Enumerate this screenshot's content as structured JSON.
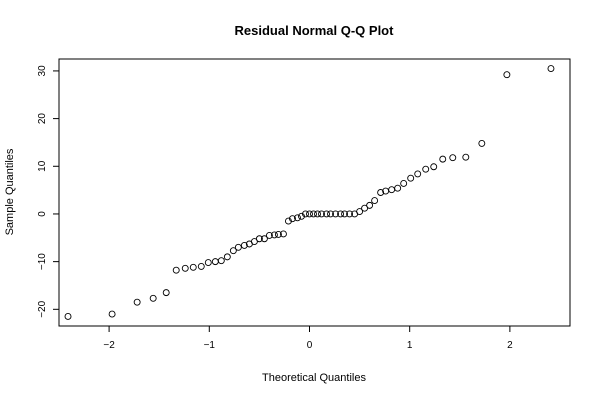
{
  "chart_data": {
    "type": "scatter",
    "title": "Residual Normal Q-Q Plot",
    "xlabel": "Theoretical Quantiles",
    "ylabel": "Sample Quantiles",
    "xlim": [
      -2.5,
      2.6
    ],
    "ylim": [
      -23.5,
      32.5
    ],
    "x_ticks": [
      -2,
      -1,
      0,
      1,
      2
    ],
    "x_tick_labels": [
      "−2",
      "−1",
      "0",
      "1",
      "2"
    ],
    "y_ticks": [
      -20,
      -10,
      0,
      10,
      20,
      30
    ],
    "y_tick_labels": [
      "−20",
      "−10",
      "0",
      "10",
      "20",
      "30"
    ],
    "grid": false,
    "legend": "none",
    "series": [
      {
        "x": [
          -2.41,
          -1.97,
          -1.72,
          -1.56,
          -1.43,
          -1.33,
          -1.24,
          -1.16,
          -1.08,
          -1.01,
          -0.94,
          -0.88,
          -0.82,
          -0.76,
          -0.71,
          -0.65,
          -0.6,
          -0.55,
          -0.5,
          -0.45,
          -0.4,
          -0.35,
          -0.31,
          -0.26,
          -0.21,
          -0.17,
          -0.12,
          -0.08,
          -0.04,
          0.0,
          0.04,
          0.08,
          0.12,
          0.17,
          0.21,
          0.26,
          0.31,
          0.35,
          0.4,
          0.45,
          0.5,
          0.55,
          0.6,
          0.65,
          0.71,
          0.76,
          0.82,
          0.88,
          0.94,
          1.01,
          1.08,
          1.16,
          1.24,
          1.33,
          1.43,
          1.56,
          1.72,
          1.97,
          2.41
        ],
        "y": [
          -21.5,
          -21.0,
          -18.5,
          -17.7,
          -16.5,
          -11.8,
          -11.4,
          -11.2,
          -11.0,
          -10.2,
          -10.0,
          -9.8,
          -9.0,
          -7.7,
          -7.0,
          -6.6,
          -6.3,
          -5.8,
          -5.2,
          -5.2,
          -4.5,
          -4.4,
          -4.3,
          -4.2,
          -1.5,
          -1.0,
          -0.8,
          -0.5,
          0.0,
          0.0,
          0.0,
          0.0,
          0.0,
          0.0,
          0.0,
          0.0,
          0.0,
          0.0,
          0.0,
          0.0,
          0.5,
          1.2,
          1.8,
          2.8,
          4.5,
          4.8,
          5.1,
          5.4,
          6.4,
          7.5,
          8.4,
          9.4,
          9.9,
          11.5,
          11.8,
          11.9,
          14.8,
          29.2,
          30.5
        ]
      }
    ]
  }
}
